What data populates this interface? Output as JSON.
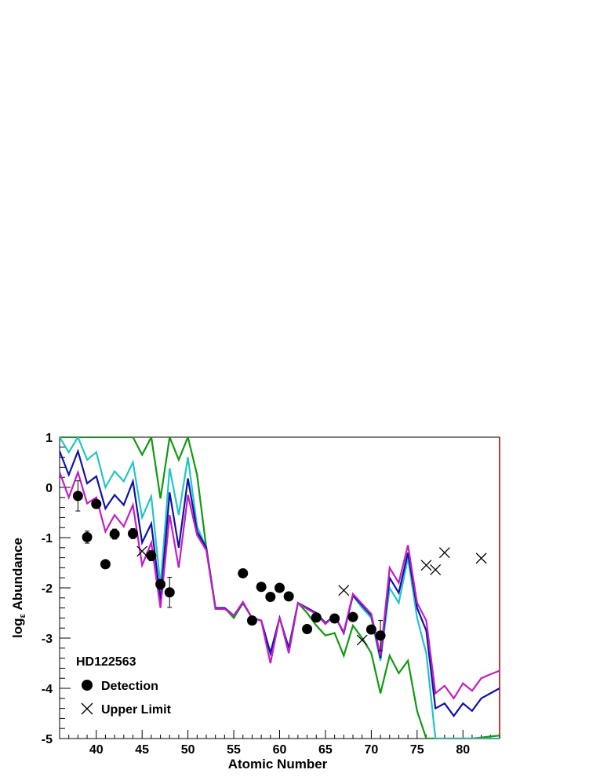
{
  "chart_data": {
    "type": "line",
    "title": "",
    "xlabel": "Atomic Number",
    "ylabel_main": "log",
    "ylabel_sub": "ε",
    "ylabel_rest": " Abundance",
    "xlim": [
      36,
      84
    ],
    "ylim": [
      -5,
      1
    ],
    "x_ticks": [
      40,
      45,
      50,
      55,
      60,
      65,
      70,
      75,
      80
    ],
    "y_ticks": [
      1,
      0,
      -1,
      -2,
      -3,
      -4,
      -5
    ],
    "legend_title": "HD122563",
    "legend_placement": "bottom-left",
    "legend": [
      {
        "label": "Detection",
        "marker": "filled-circle"
      },
      {
        "label": "Upper Limit",
        "marker": "x"
      }
    ],
    "colors": {
      "green": "#119911",
      "cyan": "#22c4c8",
      "blue": "#1111aa",
      "magenta": "#c21fc2",
      "frame_right": "#aa0000"
    },
    "series": [
      {
        "color": "green",
        "x": [
          36,
          37,
          38,
          39,
          40,
          41,
          42,
          43,
          44,
          45,
          46,
          47,
          48,
          49,
          50,
          51,
          52,
          53,
          54,
          55,
          56,
          57,
          58,
          59,
          60,
          61,
          62,
          63,
          64,
          65,
          66,
          67,
          68,
          69,
          70,
          71,
          72,
          73,
          74,
          75,
          76,
          77,
          78,
          79,
          80,
          81,
          82,
          83,
          84
        ],
        "y": [
          1,
          1,
          1,
          1,
          1,
          1,
          1,
          1,
          1,
          0.65,
          1,
          -0.22,
          1,
          0.55,
          1,
          0.25,
          -1.2,
          -2.4,
          -2.4,
          -2.6,
          -2.3,
          -2.6,
          -2.65,
          -3.3,
          -2.6,
          -3.2,
          -2.3,
          -2.5,
          -2.75,
          -2.95,
          -2.9,
          -3.35,
          -2.75,
          -3,
          -3.3,
          -4.1,
          -3.35,
          -3.7,
          -3.45,
          -4.45,
          -5,
          -5,
          -5,
          -5,
          -5,
          -5,
          -4.98,
          -4.96,
          -4.94
        ]
      },
      {
        "color": "cyan",
        "x": [
          36,
          37,
          38,
          39,
          40,
          41,
          42,
          43,
          44,
          45,
          46,
          47,
          48,
          49,
          50,
          51,
          52,
          53,
          54,
          55,
          56,
          57,
          58,
          59,
          60,
          61,
          62,
          63,
          64,
          65,
          66,
          67,
          68,
          69,
          70,
          71,
          72,
          73,
          74,
          75,
          76,
          77,
          78,
          79,
          80,
          81,
          82,
          83,
          84
        ],
        "y": [
          1,
          0.7,
          1,
          0.55,
          0.7,
          0,
          0.32,
          0.12,
          0.5,
          -0.6,
          -0.18,
          -1.95,
          0.38,
          -0.55,
          0.6,
          -0.78,
          -1.2,
          -2.4,
          -2.4,
          -2.55,
          -2.3,
          -2.6,
          -2.65,
          -3.3,
          -2.6,
          -3.2,
          -2.3,
          -2.4,
          -2.5,
          -2.7,
          -2.55,
          -2.9,
          -2.15,
          -2.4,
          -2.6,
          -3.45,
          -2,
          -2.3,
          -1.4,
          -2.6,
          -3.3,
          -5,
          -5,
          -5,
          -5,
          -5,
          -5,
          -5,
          -5
        ]
      },
      {
        "color": "blue",
        "x": [
          36,
          37,
          38,
          39,
          40,
          41,
          42,
          43,
          44,
          45,
          46,
          47,
          48,
          49,
          50,
          51,
          52,
          53,
          54,
          55,
          56,
          57,
          58,
          59,
          60,
          61,
          62,
          63,
          64,
          65,
          66,
          67,
          68,
          69,
          70,
          71,
          72,
          73,
          74,
          75,
          76,
          77,
          78,
          79,
          80,
          81,
          82,
          83,
          84
        ],
        "y": [
          0.72,
          0.25,
          0.72,
          0.08,
          0.22,
          -0.42,
          -0.15,
          -0.35,
          0.12,
          -1.1,
          -0.72,
          -2.25,
          -0.1,
          -1.2,
          0.18,
          -0.88,
          -1.2,
          -2.4,
          -2.4,
          -2.55,
          -2.3,
          -2.6,
          -2.65,
          -3.3,
          -2.6,
          -3.2,
          -2.3,
          -2.4,
          -2.5,
          -2.7,
          -2.55,
          -2.9,
          -2.15,
          -2.35,
          -2.55,
          -3.4,
          -1.8,
          -2.1,
          -1.3,
          -2.4,
          -2.85,
          -4.4,
          -4.3,
          -4.55,
          -4.3,
          -4.45,
          -4.2,
          -4.1,
          -4
        ]
      },
      {
        "color": "magenta",
        "x": [
          36,
          37,
          38,
          39,
          40,
          41,
          42,
          43,
          44,
          45,
          46,
          47,
          48,
          49,
          50,
          51,
          52,
          53,
          54,
          55,
          56,
          57,
          58,
          59,
          60,
          61,
          62,
          63,
          64,
          65,
          66,
          67,
          68,
          69,
          70,
          71,
          72,
          73,
          74,
          75,
          76,
          77,
          78,
          79,
          80,
          81,
          82,
          83,
          84
        ],
        "y": [
          0.3,
          -0.2,
          0.3,
          -0.32,
          -0.2,
          -0.88,
          -0.55,
          -0.78,
          -0.35,
          -1.55,
          -1.1,
          -2.4,
          -0.55,
          -1.6,
          -0.15,
          -0.95,
          -1.25,
          -2.42,
          -2.42,
          -2.55,
          -2.28,
          -2.6,
          -2.65,
          -3.5,
          -2.58,
          -3.3,
          -2.3,
          -2.42,
          -2.52,
          -2.72,
          -2.55,
          -2.88,
          -2.12,
          -2.32,
          -2.52,
          -3.35,
          -1.6,
          -1.9,
          -1.15,
          -2.3,
          -2.65,
          -4.1,
          -3.95,
          -4.2,
          -3.9,
          -4.05,
          -3.8,
          -3.72,
          -3.65
        ]
      }
    ],
    "detections": [
      {
        "x": 38,
        "y": -0.17,
        "err": 0.3
      },
      {
        "x": 39,
        "y": -0.99,
        "err": 0.12
      },
      {
        "x": 40,
        "y": -0.33,
        "err": 0
      },
      {
        "x": 41,
        "y": -1.53,
        "err": 0
      },
      {
        "x": 42,
        "y": -0.93,
        "err": 0.1
      },
      {
        "x": 44,
        "y": -0.92,
        "err": 0.1
      },
      {
        "x": 46,
        "y": -1.36,
        "err": 0.1
      },
      {
        "x": 47,
        "y": -1.93,
        "err": 0.1
      },
      {
        "x": 48,
        "y": -2.09,
        "err": 0.3
      },
      {
        "x": 56,
        "y": -1.71,
        "err": 0
      },
      {
        "x": 57,
        "y": -2.65,
        "err": 0
      },
      {
        "x": 58,
        "y": -1.98,
        "err": 0
      },
      {
        "x": 59,
        "y": -2.18,
        "err": 0
      },
      {
        "x": 60,
        "y": -2.0,
        "err": 0
      },
      {
        "x": 61,
        "y": -2.17,
        "err": 0
      },
      {
        "x": 63,
        "y": -2.82,
        "err": 0
      },
      {
        "x": 64,
        "y": -2.59,
        "err": 0
      },
      {
        "x": 66,
        "y": -2.61,
        "err": 0
      },
      {
        "x": 68,
        "y": -2.58,
        "err": 0
      },
      {
        "x": 70,
        "y": -2.83,
        "err": 0
      },
      {
        "x": 71,
        "y": -2.95,
        "err": 0.3
      }
    ],
    "upper_limits": [
      {
        "x": 45,
        "y": -1.27
      },
      {
        "x": 67,
        "y": -2.05
      },
      {
        "x": 69,
        "y": -3.04
      },
      {
        "x": 76,
        "y": -1.55
      },
      {
        "x": 77,
        "y": -1.64
      },
      {
        "x": 78,
        "y": -1.3
      },
      {
        "x": 82,
        "y": -1.41
      }
    ]
  }
}
